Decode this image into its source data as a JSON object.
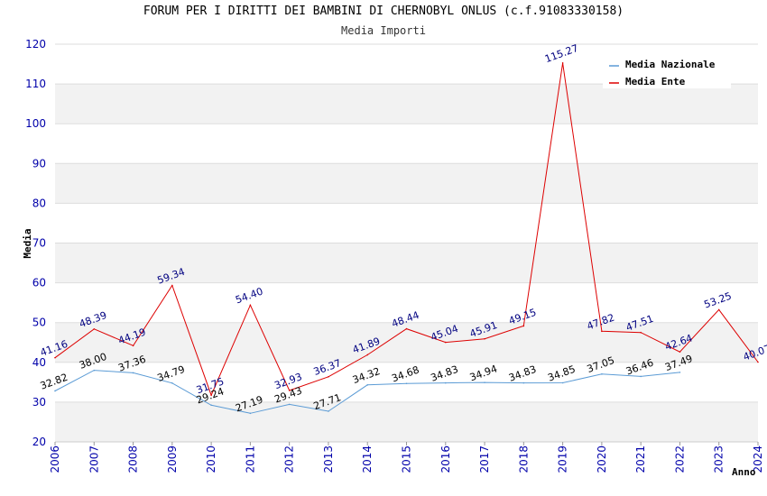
{
  "chart_data": {
    "type": "line",
    "title": "FORUM PER I DIRITTI DEI BAMBINI DI CHERNOBYL ONLUS (c.f.91083330158)",
    "subtitle": "Media Importi",
    "xlabel": "Anno",
    "ylabel": "Media",
    "ylim": [
      20,
      120
    ],
    "yticks": [
      20,
      30,
      40,
      50,
      60,
      70,
      80,
      90,
      100,
      110,
      120
    ],
    "categories": [
      "2006",
      "2007",
      "2008",
      "2009",
      "2010",
      "2011",
      "2012",
      "2013",
      "2014",
      "2015",
      "2016",
      "2017",
      "2018",
      "2019",
      "2020",
      "2021",
      "2022",
      "2023",
      "2024"
    ],
    "legend_position": "top-right",
    "grid": true,
    "series": [
      {
        "name": "Media Nazionale",
        "color": "#5b9bd5",
        "label_color": "#000000",
        "values": [
          32.82,
          38.0,
          37.36,
          34.79,
          29.24,
          27.19,
          29.43,
          27.71,
          34.32,
          34.68,
          34.83,
          34.94,
          34.83,
          34.85,
          37.05,
          36.46,
          37.49,
          null,
          null
        ],
        "labels": [
          "32.82",
          "38.00",
          "37.36",
          "34.79",
          "29.24",
          "27.19",
          "29.43",
          "27.71",
          "34.32",
          "34.68",
          "34.83",
          "34.94",
          "34.83",
          "34.85",
          "37.05",
          "36.46",
          "37.49",
          "",
          ""
        ]
      },
      {
        "name": "Media Ente",
        "color": "#dd0000",
        "label_color": "#000080",
        "values": [
          41.16,
          48.39,
          44.19,
          59.34,
          31.75,
          54.4,
          32.93,
          36.37,
          41.89,
          48.44,
          45.04,
          45.91,
          49.15,
          115.27,
          47.82,
          47.51,
          42.64,
          53.25,
          40.07
        ],
        "labels": [
          "41.16",
          "48.39",
          "44.19",
          "59.34",
          "31.75",
          "54.40",
          "32.93",
          "36.37",
          "41.89",
          "48.44",
          "45.04",
          "45.91",
          "49.15",
          "115.27",
          "47.82",
          "47.51",
          "42.64",
          "53.25",
          "40.07"
        ]
      }
    ]
  }
}
